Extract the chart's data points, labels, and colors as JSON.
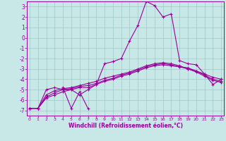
{
  "xlabel": "Windchill (Refroidissement éolien,°C)",
  "background_color": "#c8e8e8",
  "grid_color": "#a0c8c8",
  "line_color": "#990099",
  "x_ticks": [
    0,
    1,
    2,
    3,
    4,
    5,
    6,
    7,
    8,
    9,
    10,
    11,
    12,
    13,
    14,
    15,
    16,
    17,
    18,
    19,
    20,
    21,
    22,
    23
  ],
  "y_ticks": [
    -7,
    -6,
    -5,
    -4,
    -3,
    -2,
    -1,
    0,
    1,
    2,
    3
  ],
  "ylim": [
    -7.5,
    3.5
  ],
  "xlim": [
    -0.3,
    23.3
  ],
  "series": [
    [
      null,
      null,
      null,
      null,
      -4.8,
      -6.8,
      -5.2,
      -6.8,
      null,
      null,
      null,
      null,
      null,
      null,
      null,
      null,
      null,
      null,
      null,
      null,
      null,
      null,
      null,
      null
    ],
    [
      -6.8,
      -6.8,
      -5.0,
      -4.8,
      -5.0,
      -5.0,
      -5.5,
      -5.0,
      -4.5,
      -2.5,
      -2.3,
      -2.0,
      -0.3,
      1.2,
      3.5,
      3.1,
      2.0,
      2.3,
      -2.2,
      -2.5,
      -2.6,
      -3.5,
      -4.5,
      -4.0
    ],
    [
      -6.8,
      -6.8,
      -5.8,
      -5.5,
      -5.2,
      -5.0,
      -4.8,
      -4.8,
      -4.5,
      -4.2,
      -4.0,
      -3.7,
      -3.5,
      -3.2,
      -2.9,
      -2.7,
      -2.6,
      -2.7,
      -2.8,
      -2.9,
      -3.2,
      -3.5,
      -3.8,
      -4.0
    ],
    [
      -6.8,
      -6.8,
      -5.7,
      -5.3,
      -5.0,
      -4.9,
      -4.7,
      -4.6,
      -4.4,
      -4.1,
      -3.9,
      -3.6,
      -3.4,
      -3.1,
      -2.8,
      -2.6,
      -2.5,
      -2.6,
      -2.8,
      -3.0,
      -3.3,
      -3.7,
      -4.1,
      -4.3
    ],
    [
      -6.8,
      -6.8,
      -5.5,
      -5.1,
      -4.9,
      -4.8,
      -4.6,
      -4.4,
      -4.2,
      -3.9,
      -3.7,
      -3.5,
      -3.3,
      -3.0,
      -2.7,
      -2.5,
      -2.4,
      -2.5,
      -2.7,
      -3.0,
      -3.2,
      -3.6,
      -4.0,
      -4.2
    ]
  ]
}
